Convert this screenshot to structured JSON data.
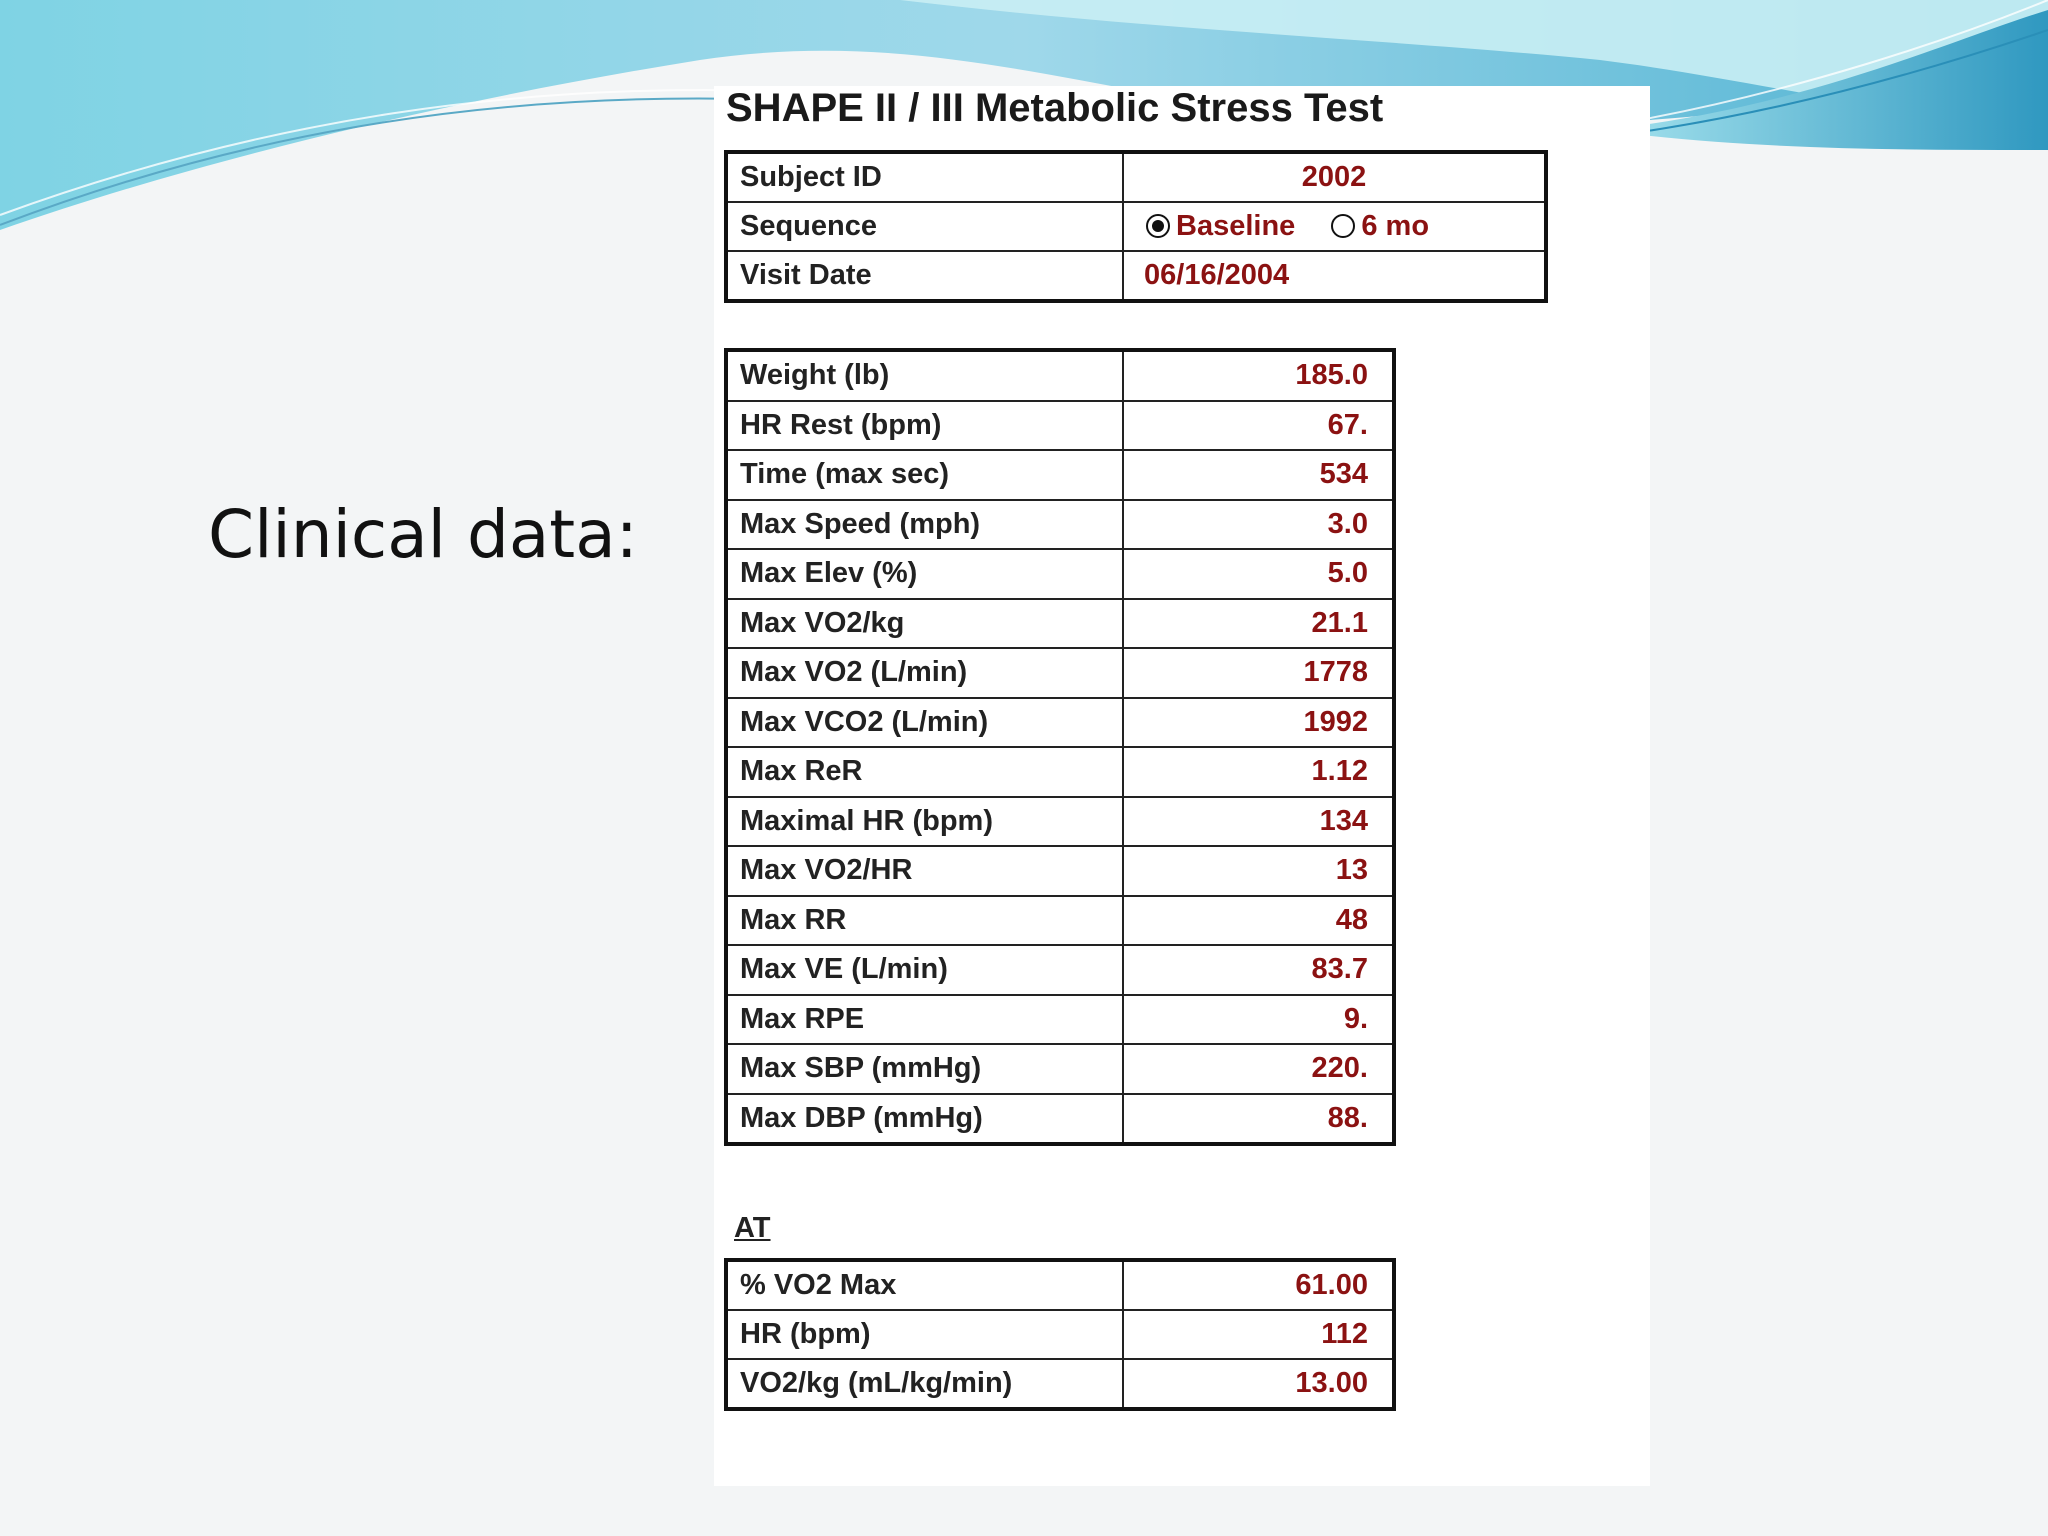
{
  "slide": {
    "title": "Clinical data:"
  },
  "form": {
    "title": "SHAPE II / III Metabolic Stress Test",
    "header": {
      "subject_id_label": "Subject ID",
      "subject_id_value": "2002",
      "sequence_label": "Sequence",
      "sequence_options": [
        {
          "label": "Baseline",
          "selected": true
        },
        {
          "label": "6 mo",
          "selected": false
        }
      ],
      "visit_date_label": "Visit Date",
      "visit_date_value": "06/16/2004"
    },
    "measures": [
      {
        "label": "Weight (lb)",
        "value": "185.0"
      },
      {
        "label": "HR Rest (bpm)",
        "value": "67."
      },
      {
        "label": "Time (max sec)",
        "value": "534"
      },
      {
        "label": "Max Speed (mph)",
        "value": "3.0"
      },
      {
        "label": "Max Elev (%)",
        "value": "5.0"
      },
      {
        "label": "Max VO2/kg",
        "value": "21.1"
      },
      {
        "label": "Max VO2 (L/min)",
        "value": "1778"
      },
      {
        "label": "Max VCO2 (L/min)",
        "value": "1992"
      },
      {
        "label": "Max ReR",
        "value": "1.12"
      },
      {
        "label": "Maximal HR (bpm)",
        "value": "134"
      },
      {
        "label": "Max VO2/HR",
        "value": "13"
      },
      {
        "label": "Max RR",
        "value": "48"
      },
      {
        "label": "Max VE (L/min)",
        "value": "83.7"
      },
      {
        "label": "Max RPE",
        "value": "9."
      },
      {
        "label": "Max SBP (mmHg)",
        "value": "220."
      },
      {
        "label": "Max DBP (mmHg)",
        "value": "88."
      }
    ],
    "at_section": {
      "label": "AT",
      "rows": [
        {
          "label": "% VO2 Max",
          "value": "61.00"
        },
        {
          "label": "HR (bpm)",
          "value": "112"
        },
        {
          "label": "VO2/kg (mL/kg/min)",
          "value": "13.00"
        }
      ]
    }
  },
  "colors": {
    "value_text": "#8b1212",
    "label_text": "#222222",
    "wave_light": "#b8e6ef",
    "wave_mid": "#7ccfe0",
    "wave_dark": "#3a9fc2"
  }
}
